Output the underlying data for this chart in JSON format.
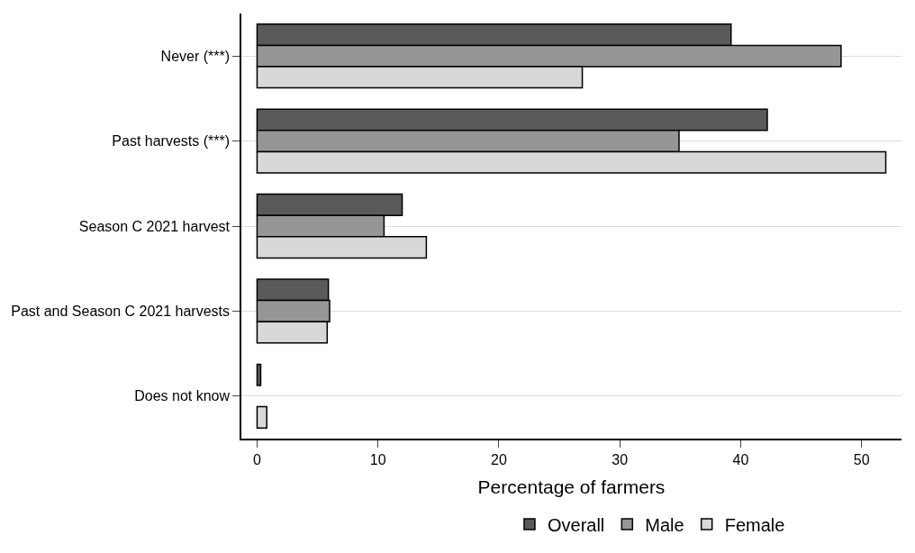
{
  "chart_data": {
    "type": "bar",
    "orientation": "horizontal",
    "xlabel": "Percentage of farmers",
    "categories": [
      "Never (***)",
      "Past harvests (***)",
      "Season C 2021 harvest",
      "Past and Season C 2021 harvests",
      "Does not know"
    ],
    "series": [
      {
        "name": "Overall",
        "color": "#5a5a5a",
        "values": [
          39.2,
          42.2,
          12.0,
          5.9,
          0.3
        ]
      },
      {
        "name": "Male",
        "color": "#969696",
        "values": [
          48.3,
          34.9,
          10.5,
          6.0,
          0
        ]
      },
      {
        "name": "Female",
        "color": "#d8d8d8",
        "values": [
          26.9,
          52.0,
          14.0,
          5.8,
          0.8
        ]
      }
    ],
    "xlim": [
      -1.3,
      53.3
    ],
    "xticks": [
      0,
      10,
      20,
      30,
      40,
      50
    ],
    "grid": "y",
    "legend": "bottom"
  }
}
